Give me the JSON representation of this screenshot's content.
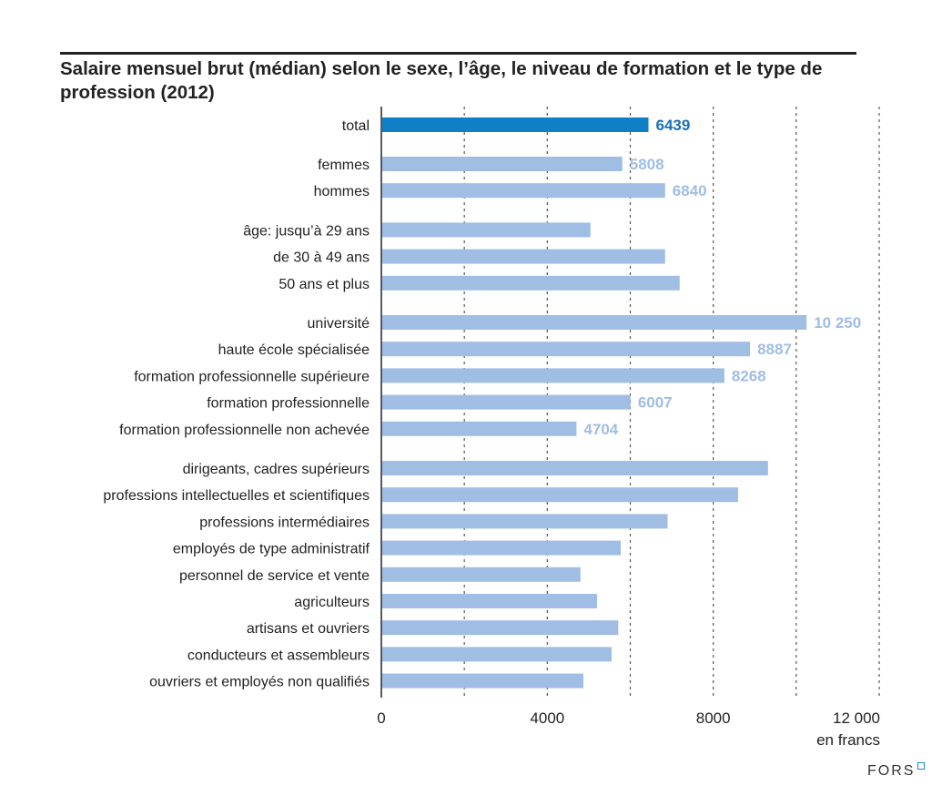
{
  "chart_data": {
    "type": "bar",
    "orientation": "horizontal",
    "title": "Salaire mensuel brut (médian) selon le sexe, l’âge, le niveau de formation et le type de profession (2012)",
    "xlabel": "en francs",
    "xlim": [
      0,
      12000
    ],
    "xticks": [
      0,
      4000,
      8000,
      12000
    ],
    "xtick_labels": [
      "0",
      "4000",
      "8000",
      "12 000"
    ],
    "gridlines": [
      2000,
      4000,
      6000,
      8000,
      10000,
      12000
    ],
    "grid": "vertical dashed",
    "colors": {
      "highlight": "#0f7fc6",
      "default": "#a0bde4",
      "default_label": "#a0bde4",
      "highlight_label": "#1a6fb5"
    },
    "groups": [
      {
        "items": [
          {
            "label": "total",
            "value": 6439,
            "value_label": "6439",
            "highlight": true
          }
        ]
      },
      {
        "items": [
          {
            "label": "femmes",
            "value": 5808,
            "value_label": "5808"
          },
          {
            "label": "hommes",
            "value": 6840,
            "value_label": "6840"
          }
        ]
      },
      {
        "items": [
          {
            "label": "âge: jusqu’à 29 ans",
            "value": 5040
          },
          {
            "label": "de 30 à 49 ans",
            "value": 6840
          },
          {
            "label": "50 ans et plus",
            "value": 7190
          }
        ]
      },
      {
        "items": [
          {
            "label": "université",
            "value": 10250,
            "value_label": "10 250"
          },
          {
            "label": "haute école spécialisée",
            "value": 8887,
            "value_label": "8887"
          },
          {
            "label": "formation professionnelle supérieure",
            "value": 8268,
            "value_label": "8268"
          },
          {
            "label": "formation professionnelle",
            "value": 6007,
            "value_label": "6007"
          },
          {
            "label": "formation professionnelle non achevée",
            "value": 4704,
            "value_label": "4704"
          }
        ]
      },
      {
        "items": [
          {
            "label": "dirigeants, cadres supérieurs",
            "value": 9320
          },
          {
            "label": "professions intellectuelles et scientifiques",
            "value": 8600
          },
          {
            "label": "professions intermédiaires",
            "value": 6900
          },
          {
            "label": "employés de type administratif",
            "value": 5770
          },
          {
            "label": "personnel de service et vente",
            "value": 4800
          },
          {
            "label": "agriculteurs",
            "value": 5200
          },
          {
            "label": "artisans et ouvriers",
            "value": 5710
          },
          {
            "label": "conducteurs et assembleurs",
            "value": 5550
          },
          {
            "label": "ouvriers et employés non qualifiés",
            "value": 4870
          }
        ]
      }
    ]
  },
  "footer": {
    "logo_text": "FORS"
  }
}
